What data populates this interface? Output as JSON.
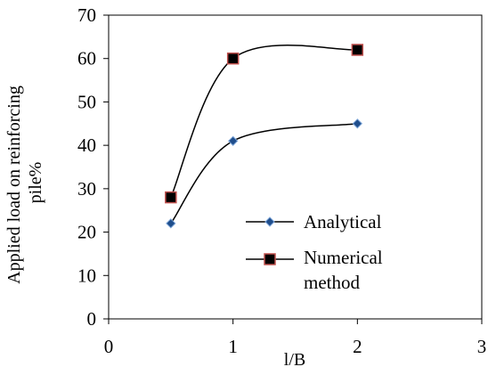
{
  "chart_data": {
    "type": "line",
    "title": "",
    "xlabel": "l/B",
    "ylabel_lines": [
      "Applied load on reinforcing",
      "pile%"
    ],
    "xlim": [
      0,
      3
    ],
    "ylim": [
      0,
      70
    ],
    "xticks": [
      0,
      1,
      2,
      3
    ],
    "yticks": [
      0,
      10,
      20,
      30,
      40,
      50,
      60,
      70
    ],
    "grid": false,
    "legend_position": "center-right, inside plot area",
    "series": [
      {
        "name": "Analytical",
        "marker": "diamond",
        "marker_color": "#1f4e8c",
        "marker_edge": "#7fa7d9",
        "line_color": "#000000",
        "smooth": true,
        "x": [
          0.5,
          1,
          2
        ],
        "y": [
          22,
          41,
          45
        ]
      },
      {
        "name_lines": [
          "Numerical",
          "method"
        ],
        "marker": "square",
        "marker_color": "#000000",
        "marker_edge": "#c0504d",
        "line_color": "#000000",
        "smooth": true,
        "x": [
          0.5,
          1,
          2
        ],
        "y": [
          28,
          60,
          62
        ]
      }
    ]
  }
}
